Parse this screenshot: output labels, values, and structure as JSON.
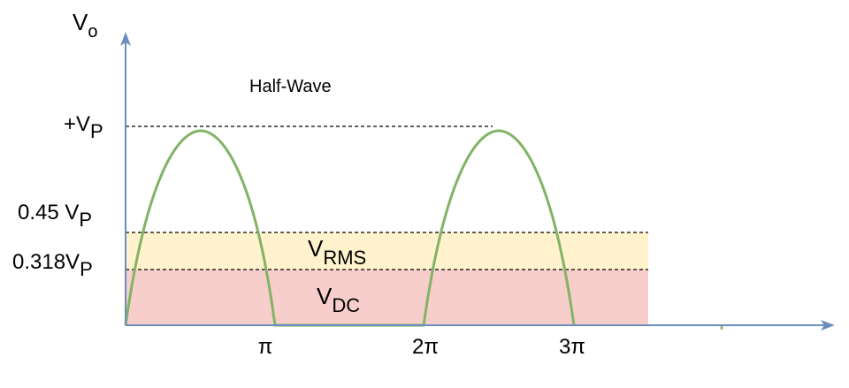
{
  "title": "Half-Wave",
  "y_axis": {
    "symbol": "V",
    "subscript": "o"
  },
  "levels": {
    "peak": {
      "prefix": "+V",
      "subscript": "P"
    },
    "rms": {
      "prefix": "0.45 V",
      "subscript": "P"
    },
    "dc": {
      "prefix": "0.318V",
      "subscript": "P"
    }
  },
  "bands": {
    "rms": {
      "symbol": "V",
      "subscript": "RMS",
      "color": "#fff2cc"
    },
    "dc": {
      "symbol": "V",
      "subscript": "DC",
      "color": "#f8cecc"
    }
  },
  "x_ticks": [
    "π",
    "2π",
    "3π"
  ],
  "colors": {
    "axis": "#6c8ebf",
    "waveform": "#82b366",
    "guide": "#000000"
  }
}
